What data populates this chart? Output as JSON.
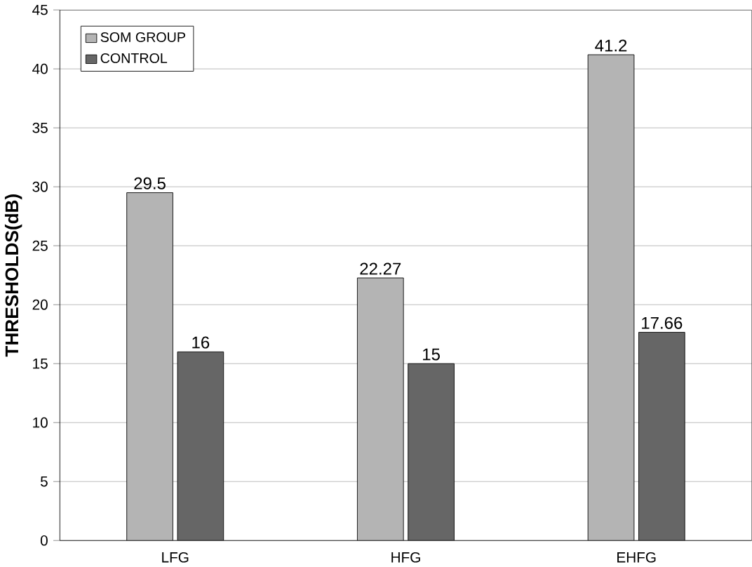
{
  "chart_data": {
    "type": "bar",
    "ylabel": "THRESHOLDS(dB)",
    "categories": [
      "LFG",
      "HFG",
      "EHFG"
    ],
    "series": [
      {
        "name": "SOM GROUP",
        "color": "#b4b4b4",
        "values": [
          29.5,
          22.27,
          41.2
        ]
      },
      {
        "name": "CONTROL",
        "color": "#666666",
        "values": [
          16,
          15,
          17.66
        ]
      }
    ],
    "ylim": [
      0,
      45
    ],
    "yticks": [
      0,
      5,
      10,
      15,
      20,
      25,
      30,
      35,
      40,
      45
    ],
    "grid": "y",
    "legend": "top left",
    "data_labels": true
  }
}
